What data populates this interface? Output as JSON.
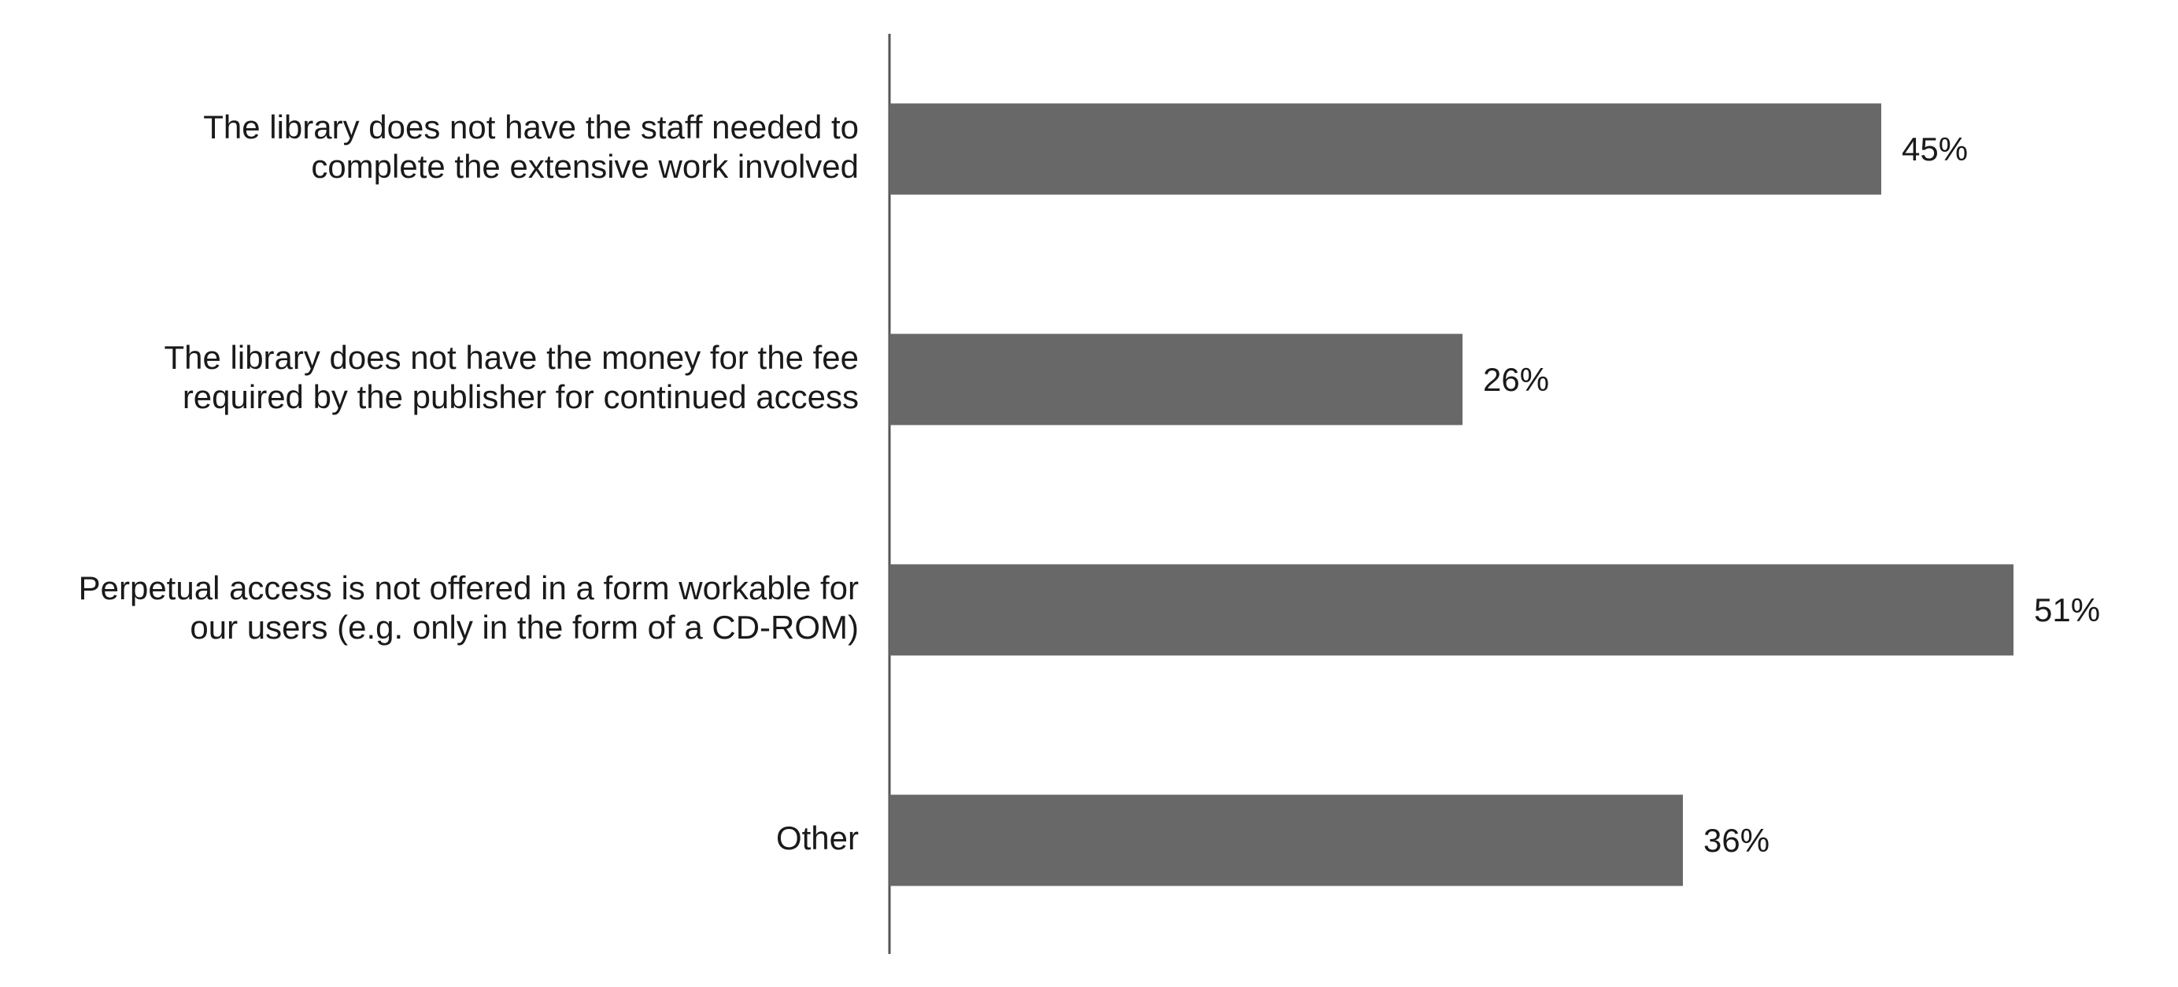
{
  "chart_data": {
    "type": "bar",
    "orientation": "horizontal",
    "categories": [
      "The library does not have the staff needed to\ncomplete the extensive work involved",
      "The library does not have the money for the fee\nrequired by the publisher for continued access",
      "Perpetual access is not offered in a form workable for\nour users (e.g. only in the form of a CD-ROM)",
      "Other"
    ],
    "values": [
      45,
      26,
      51,
      36
    ],
    "value_labels": [
      "45%",
      "26%",
      "51%",
      "36%"
    ],
    "unit": "%",
    "xlim": [
      0,
      56
    ],
    "grid": false,
    "legend": "none",
    "colors": {
      "bar": "#686868",
      "axis": "#555555",
      "text": "#1a1a1a"
    }
  }
}
